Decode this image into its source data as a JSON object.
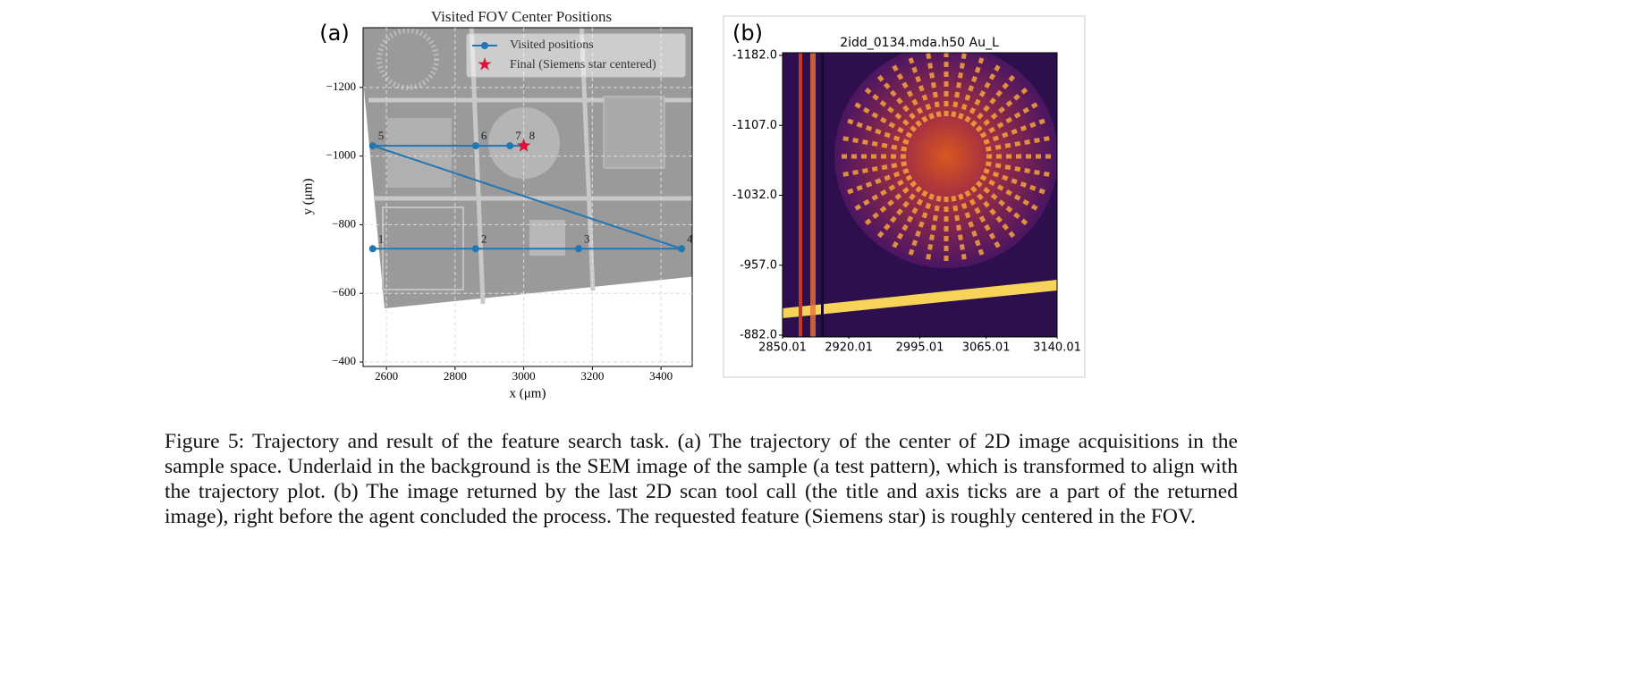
{
  "chart_data": [
    {
      "type": "line",
      "title": "Visited FOV Center Positions",
      "x_label": "x (μm)",
      "y_label": "y (μm)",
      "series": [
        {
          "name": "Visited positions",
          "color": "#1f77b4",
          "x": [
            2560,
            2860,
            3160,
            3460,
            2560,
            2860,
            2960,
            3000
          ],
          "y": [
            -730,
            -730,
            -730,
            -730,
            -1030,
            -1030,
            -1030,
            -1030
          ]
        },
        {
          "name": "Final (Siemens star centered)",
          "color": "#dc143c",
          "marker": "star",
          "x": [
            3000
          ],
          "y": [
            -1030
          ]
        }
      ],
      "point_labels": [
        "1",
        "2",
        "3",
        "4",
        "5",
        "6",
        "7",
        "8"
      ],
      "xlim": [
        2532,
        3491
      ],
      "ylim": [
        -387,
        -1374
      ],
      "xticks": [
        2600,
        2800,
        3000,
        3200,
        3400
      ],
      "yticks": [
        {
          "value": -1200,
          "label": "−1200"
        },
        {
          "value": -1000,
          "label": "−1000"
        },
        {
          "value": -800,
          "label": "−800"
        },
        {
          "value": -600,
          "label": "−600"
        },
        {
          "value": -400,
          "label": "−400"
        }
      ],
      "grid": true,
      "legend": "upper right"
    },
    {
      "type": "heatmap",
      "title": "2idd_0134.mda.h50 Au_L",
      "xlim": [
        2850.01,
        3140.01
      ],
      "ylim": [
        -882,
        -1182
      ],
      "xticks": [
        2850.01,
        2920.01,
        2995.01,
        3065.01,
        3140.01
      ],
      "yticks": [
        {
          "value": -1182,
          "label": "-1182.0"
        },
        {
          "value": -1107,
          "label": "-1107.0"
        },
        {
          "value": -1032,
          "label": "-1032.0"
        },
        {
          "value": -957,
          "label": "-957.0"
        },
        {
          "value": -882,
          "label": "-882.0"
        }
      ]
    }
  ],
  "panel_labels": [
    "(a)",
    "(b)"
  ],
  "caption": "Figure 5: Trajectory and result of the feature search task. (a) The trajectory of the center of 2D image acquisitions in the sample space. Underlaid in the background is the SEM image of the sample (a test pattern), which is transformed to align with the trajectory plot. (b) The image returned by the last 2D scan tool call (the title and axis ticks are a part of the returned image), right before the agent concluded the process. The requested feature (Siemens star) is roughly centered in the FOV."
}
